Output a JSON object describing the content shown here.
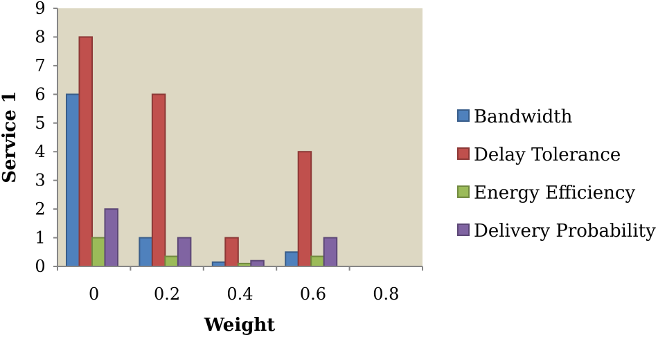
{
  "chart_data": {
    "type": "bar",
    "title": "",
    "xlabel": "Weight",
    "ylabel": "Service 1",
    "categories": [
      "0",
      "0.2",
      "0.4",
      "0.6",
      "0.8"
    ],
    "ylim": [
      0,
      9
    ],
    "yticks": [
      "0",
      "1",
      "2",
      "3",
      "4",
      "5",
      "6",
      "7",
      "8",
      "9"
    ],
    "grid": false,
    "legend_position": "right",
    "plot_background": "#ddd8c3",
    "series": [
      {
        "name": "Bandwidth",
        "color": "#4f81bd",
        "border": "#385d8a",
        "values": [
          6,
          1,
          0.15,
          0.5,
          0
        ]
      },
      {
        "name": "Delay Tolerance",
        "color": "#c0504d",
        "border": "#8c3836",
        "values": [
          8,
          6,
          1,
          4,
          0
        ]
      },
      {
        "name": "Energy Efficiency",
        "color": "#9bbb59",
        "border": "#71893f",
        "values": [
          1,
          0.35,
          0.1,
          0.35,
          0
        ]
      },
      {
        "name": "Delivery Probability",
        "color": "#8064a2",
        "border": "#5c4776",
        "values": [
          2,
          1,
          0.2,
          1,
          0
        ]
      }
    ]
  }
}
